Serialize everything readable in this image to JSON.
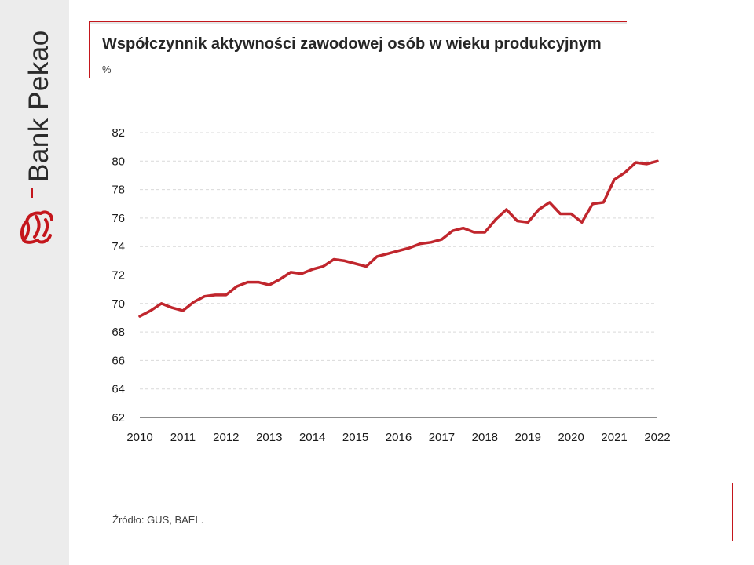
{
  "brand": {
    "name": "Bank Pekao"
  },
  "chart": {
    "title": "Współczynnik aktywności zawodowej osób w wieku produkcyjnym",
    "unit": "%",
    "source": "Źródło: GUS, BAEL."
  },
  "colors": {
    "accent": "#c4161c",
    "line": "#c0262d",
    "grid": "#d9d9d9"
  },
  "chart_data": {
    "type": "line",
    "title": "Współczynnik aktywności zawodowej osób w wieku produkcyjnym",
    "ylabel": "%",
    "xlabel": "",
    "ylim": [
      62,
      82
    ],
    "yticks": [
      62,
      64,
      66,
      68,
      70,
      72,
      74,
      76,
      78,
      80,
      82
    ],
    "xticks": [
      "2010",
      "2011",
      "2012",
      "2013",
      "2014",
      "2015",
      "2016",
      "2017",
      "2018",
      "2019",
      "2020",
      "2021",
      "2022"
    ],
    "x_frequency": "quarterly",
    "grid": "horizontal dashed",
    "series": [
      {
        "values": [
          69.1,
          69.5,
          70.0,
          69.7,
          69.5,
          70.1,
          70.5,
          70.6,
          70.6,
          71.2,
          71.5,
          71.5,
          71.3,
          71.7,
          72.2,
          72.1,
          72.4,
          72.6,
          73.1,
          73.0,
          72.8,
          72.6,
          73.3,
          73.5,
          73.7,
          73.9,
          74.2,
          74.3,
          74.5,
          75.1,
          75.3,
          75.0,
          75.0,
          75.9,
          76.6,
          75.8,
          75.7,
          76.6,
          77.1,
          76.3,
          76.3,
          75.7,
          77.0,
          77.1,
          78.7,
          79.2,
          79.9,
          79.8,
          80.0
        ]
      }
    ]
  }
}
